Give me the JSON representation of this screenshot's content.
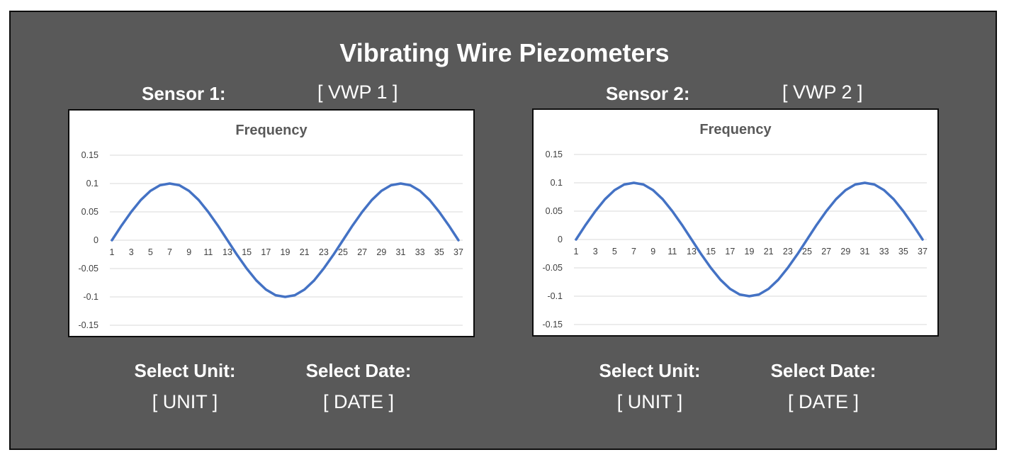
{
  "header": {
    "title": "Vibrating Wire Piezometers"
  },
  "sensors": [
    {
      "label": "Sensor 1:",
      "value": "[ VWP 1 ]",
      "unit_label": "Select Unit:",
      "unit_value": "[ UNIT ]",
      "date_label": "Select Date:",
      "date_value": "[ DATE ]"
    },
    {
      "label": "Sensor 2:",
      "value": "[ VWP 2 ]",
      "unit_label": "Select Unit:",
      "unit_value": "[ UNIT ]",
      "date_label": "Select Date:",
      "date_value": "[ DATE ]"
    }
  ],
  "colors": {
    "background": "#595959",
    "series": "#4472c4",
    "gridline": "#d9d9d9"
  },
  "chart_data": [
    {
      "type": "line",
      "title": "Frequency",
      "xlabel": "",
      "ylabel": "",
      "x_tick_labels": [
        "1",
        "3",
        "5",
        "7",
        "9",
        "11",
        "13",
        "15",
        "17",
        "19",
        "21",
        "23",
        "25",
        "27",
        "29",
        "31",
        "33",
        "35",
        "37"
      ],
      "y_tick_labels": [
        "0.15",
        "0.1",
        "0.05",
        "0",
        "-0.05",
        "-0.1",
        "-0.15"
      ],
      "ylim": [
        -0.15,
        0.15
      ],
      "grid": true,
      "legend": "none",
      "series": [
        {
          "x": [
            1,
            2,
            3,
            4,
            5,
            6,
            7,
            8,
            9,
            10,
            11,
            12,
            13,
            14,
            15,
            16,
            17,
            18,
            19,
            20,
            21,
            22,
            23,
            24,
            25,
            26,
            27,
            28,
            29,
            30,
            31,
            32,
            33,
            34,
            35,
            36,
            37
          ],
          "values": [
            0,
            0.026,
            0.05,
            0.071,
            0.087,
            0.097,
            0.1,
            0.097,
            0.087,
            0.071,
            0.05,
            0.026,
            0,
            -0.026,
            -0.05,
            -0.071,
            -0.087,
            -0.097,
            -0.1,
            -0.097,
            -0.087,
            -0.071,
            -0.05,
            -0.026,
            0,
            0.026,
            0.05,
            0.071,
            0.087,
            0.097,
            0.1,
            0.097,
            0.087,
            0.071,
            0.05,
            0.026,
            0
          ]
        }
      ]
    },
    {
      "type": "line",
      "title": "Frequency",
      "xlabel": "",
      "ylabel": "",
      "x_tick_labels": [
        "1",
        "3",
        "5",
        "7",
        "9",
        "11",
        "13",
        "15",
        "17",
        "19",
        "21",
        "23",
        "25",
        "27",
        "29",
        "31",
        "33",
        "35",
        "37"
      ],
      "y_tick_labels": [
        "0.15",
        "0.1",
        "0.05",
        "0",
        "-0.05",
        "-0.1",
        "-0.15"
      ],
      "ylim": [
        -0.15,
        0.15
      ],
      "grid": true,
      "legend": "none",
      "series": [
        {
          "x": [
            1,
            2,
            3,
            4,
            5,
            6,
            7,
            8,
            9,
            10,
            11,
            12,
            13,
            14,
            15,
            16,
            17,
            18,
            19,
            20,
            21,
            22,
            23,
            24,
            25,
            26,
            27,
            28,
            29,
            30,
            31,
            32,
            33,
            34,
            35,
            36,
            37
          ],
          "values": [
            0,
            0.026,
            0.05,
            0.071,
            0.087,
            0.097,
            0.1,
            0.097,
            0.087,
            0.071,
            0.05,
            0.026,
            0,
            -0.026,
            -0.05,
            -0.071,
            -0.087,
            -0.097,
            -0.1,
            -0.097,
            -0.087,
            -0.071,
            -0.05,
            -0.026,
            0,
            0.026,
            0.05,
            0.071,
            0.087,
            0.097,
            0.1,
            0.097,
            0.087,
            0.071,
            0.05,
            0.026,
            0
          ]
        }
      ]
    }
  ]
}
